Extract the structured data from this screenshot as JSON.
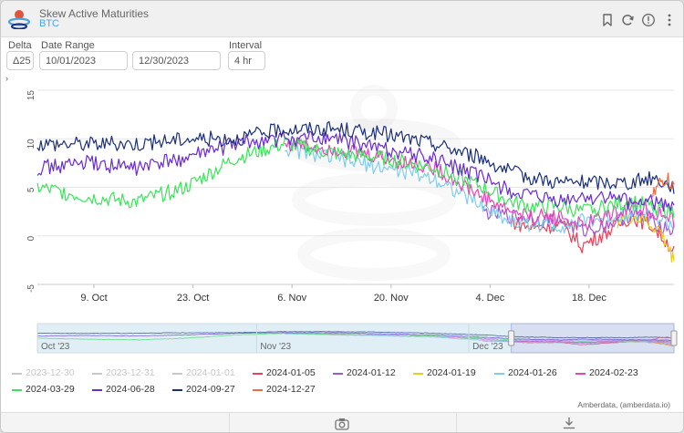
{
  "header": {
    "title": "Skew Active Maturities",
    "subtitle": "BTC",
    "icons": [
      "bookmark-icon",
      "refresh-icon",
      "info-icon",
      "more-vertical-icon"
    ]
  },
  "controls": {
    "delta_label": "Delta",
    "delta_value": "Δ25",
    "date_range_label": "Date Range",
    "date_start": "10/01/2023",
    "date_end": "12/30/2023",
    "interval_label": "Interval",
    "interval_value": "4 hr"
  },
  "expander_glyph": "›",
  "credits": "Amberdata, (amberdata.io)",
  "footer_icons": [
    "camera-icon",
    "download-icon"
  ],
  "colors": {
    "accent": "#4aa3df",
    "grid": "#e6e6e6",
    "disabled_legend": "#c8c8c8"
  },
  "chart_data": {
    "type": "line",
    "title": "",
    "ylim": [
      -5,
      15
    ],
    "yticks": [
      -5,
      0,
      5,
      10,
      15
    ],
    "ytick_labels": [
      "-5",
      "0",
      "5",
      "10",
      "15"
    ],
    "xlim": [
      "2023-10-01",
      "2023-12-30"
    ],
    "xticks": [
      "2023-10-09",
      "2023-10-23",
      "2023-11-06",
      "2023-11-20",
      "2023-12-04",
      "2023-12-18"
    ],
    "xtick_labels": [
      "9. Oct",
      "23. Oct",
      "6. Nov",
      "20. Nov",
      "4. Dec",
      "18. Dec"
    ],
    "navigator_labels": [
      "Oct '23",
      "Nov '23",
      "Dec '23"
    ],
    "navigator_ticks": [
      "2023-10-01",
      "2023-11-01",
      "2023-12-01"
    ],
    "navigator_selection": [
      "2023-12-07",
      "2023-12-30"
    ],
    "grid": true,
    "legend_position": "bottom",
    "watermark": "amberdata-logo",
    "series": [
      {
        "name": "2023-12-30",
        "color": "#c8c8c8",
        "visible": false,
        "x": [],
        "y": []
      },
      {
        "name": "2023-12-31",
        "color": "#c8c8c8",
        "visible": false,
        "x": [],
        "y": []
      },
      {
        "name": "2024-01-01",
        "color": "#c8c8c8",
        "visible": false,
        "x": [],
        "y": []
      },
      {
        "name": "2024-01-05",
        "color": "#e8415a",
        "visible": true,
        "x": [
          "2023-10-01",
          "2023-10-08",
          "2023-10-15",
          "2023-10-22",
          "2023-10-29",
          "2023-11-05",
          "2023-11-12",
          "2023-11-19",
          "2023-11-26",
          "2023-12-03",
          "2023-12-07",
          "2023-12-10",
          "2023-12-14",
          "2023-12-17",
          "2023-12-20",
          "2023-12-24",
          "2023-12-27",
          "2023-12-30"
        ],
        "y": [
          null,
          null,
          null,
          null,
          null,
          null,
          null,
          null,
          null,
          null,
          1.5,
          0.8,
          1.2,
          -1.0,
          0.2,
          2.0,
          1.0,
          -1.5
        ]
      },
      {
        "name": "2024-01-12",
        "color": "#9c59d1",
        "visible": true,
        "x": [
          "2023-10-01",
          "2023-10-08",
          "2023-10-15",
          "2023-10-22",
          "2023-10-29",
          "2023-11-05",
          "2023-11-12",
          "2023-11-19",
          "2023-11-26",
          "2023-12-03",
          "2023-12-07",
          "2023-12-10",
          "2023-12-14",
          "2023-12-17",
          "2023-12-20",
          "2023-12-24",
          "2023-12-27",
          "2023-12-30"
        ],
        "y": [
          null,
          null,
          null,
          null,
          null,
          null,
          null,
          null,
          null,
          2.5,
          2.0,
          1.8,
          1.5,
          0.5,
          1.0,
          2.2,
          1.5,
          0.5
        ]
      },
      {
        "name": "2024-01-19",
        "color": "#e3d11a",
        "visible": true,
        "x": [
          "2023-12-22",
          "2023-12-24",
          "2023-12-26",
          "2023-12-28",
          "2023-12-29",
          "2023-12-30"
        ],
        "y": [
          1.5,
          2.0,
          1.5,
          0.5,
          -1.0,
          -2.5
        ]
      },
      {
        "name": "2024-01-26",
        "color": "#7fcdea",
        "visible": true,
        "x": [
          "2023-10-01",
          "2023-10-08",
          "2023-10-15",
          "2023-10-22",
          "2023-10-29",
          "2023-11-05",
          "2023-11-12",
          "2023-11-19",
          "2023-11-26",
          "2023-12-03",
          "2023-12-07",
          "2023-12-10",
          "2023-12-14",
          "2023-12-17",
          "2023-12-20",
          "2023-12-24",
          "2023-12-27",
          "2023-12-30"
        ],
        "y": [
          null,
          null,
          null,
          null,
          null,
          9.0,
          8.0,
          7.0,
          6.0,
          3.0,
          1.5,
          1.2,
          1.0,
          1.5,
          1.8,
          2.5,
          2.2,
          1.0
        ]
      },
      {
        "name": "2024-02-23",
        "color": "#e447b5",
        "visible": true,
        "x": [
          "2023-10-01",
          "2023-10-08",
          "2023-10-15",
          "2023-10-22",
          "2023-10-29",
          "2023-11-05",
          "2023-11-12",
          "2023-11-19",
          "2023-11-26",
          "2023-12-03",
          "2023-12-07",
          "2023-12-10",
          "2023-12-14",
          "2023-12-17",
          "2023-12-20",
          "2023-12-24",
          "2023-12-27",
          "2023-12-30"
        ],
        "y": [
          null,
          null,
          null,
          null,
          null,
          9.5,
          9.0,
          8.0,
          7.0,
          4.0,
          2.5,
          2.0,
          2.0,
          1.0,
          2.0,
          3.0,
          2.5,
          1.5
        ]
      },
      {
        "name": "2024-03-29",
        "color": "#3be35a",
        "visible": true,
        "x": [
          "2023-10-01",
          "2023-10-08",
          "2023-10-15",
          "2023-10-22",
          "2023-10-29",
          "2023-11-05",
          "2023-11-12",
          "2023-11-19",
          "2023-11-26",
          "2023-12-03",
          "2023-12-07",
          "2023-12-10",
          "2023-12-14",
          "2023-12-17",
          "2023-12-20",
          "2023-12-24",
          "2023-12-27",
          "2023-12-30"
        ],
        "y": [
          5.0,
          4.0,
          3.5,
          5.0,
          8.0,
          9.5,
          8.5,
          8.0,
          7.0,
          5.0,
          3.5,
          3.0,
          3.0,
          2.5,
          3.0,
          3.5,
          3.0,
          2.5
        ]
      },
      {
        "name": "2024-06-28",
        "color": "#6a2bd1",
        "visible": true,
        "x": [
          "2023-10-01",
          "2023-10-08",
          "2023-10-15",
          "2023-10-22",
          "2023-10-29",
          "2023-11-05",
          "2023-11-12",
          "2023-11-19",
          "2023-11-26",
          "2023-12-03",
          "2023-12-07",
          "2023-12-10",
          "2023-12-14",
          "2023-12-17",
          "2023-12-20",
          "2023-12-24",
          "2023-12-27",
          "2023-12-30"
        ],
        "y": [
          7.0,
          7.5,
          7.0,
          8.0,
          9.5,
          10.0,
          10.0,
          9.0,
          8.0,
          6.0,
          4.5,
          4.0,
          3.5,
          4.0,
          4.0,
          3.5,
          3.5,
          3.0
        ]
      },
      {
        "name": "2024-09-27",
        "color": "#1a2f7a",
        "visible": true,
        "x": [
          "2023-10-01",
          "2023-10-08",
          "2023-10-15",
          "2023-10-22",
          "2023-10-29",
          "2023-11-05",
          "2023-11-12",
          "2023-11-19",
          "2023-11-26",
          "2023-12-03",
          "2023-12-07",
          "2023-12-10",
          "2023-12-14",
          "2023-12-17",
          "2023-12-20",
          "2023-12-24",
          "2023-12-27",
          "2023-12-30"
        ],
        "y": [
          9.5,
          9.5,
          9.5,
          10.0,
          10.0,
          11.0,
          11.0,
          10.5,
          9.5,
          8.0,
          6.5,
          6.0,
          5.5,
          5.5,
          5.5,
          5.5,
          6.0,
          5.0
        ]
      },
      {
        "name": "2024-12-27",
        "color": "#f06a3c",
        "visible": true,
        "x": [
          "2023-12-27",
          "2023-12-28",
          "2023-12-29",
          "2023-12-30"
        ],
        "y": [
          4.0,
          5.5,
          6.0,
          5.0
        ]
      }
    ]
  }
}
